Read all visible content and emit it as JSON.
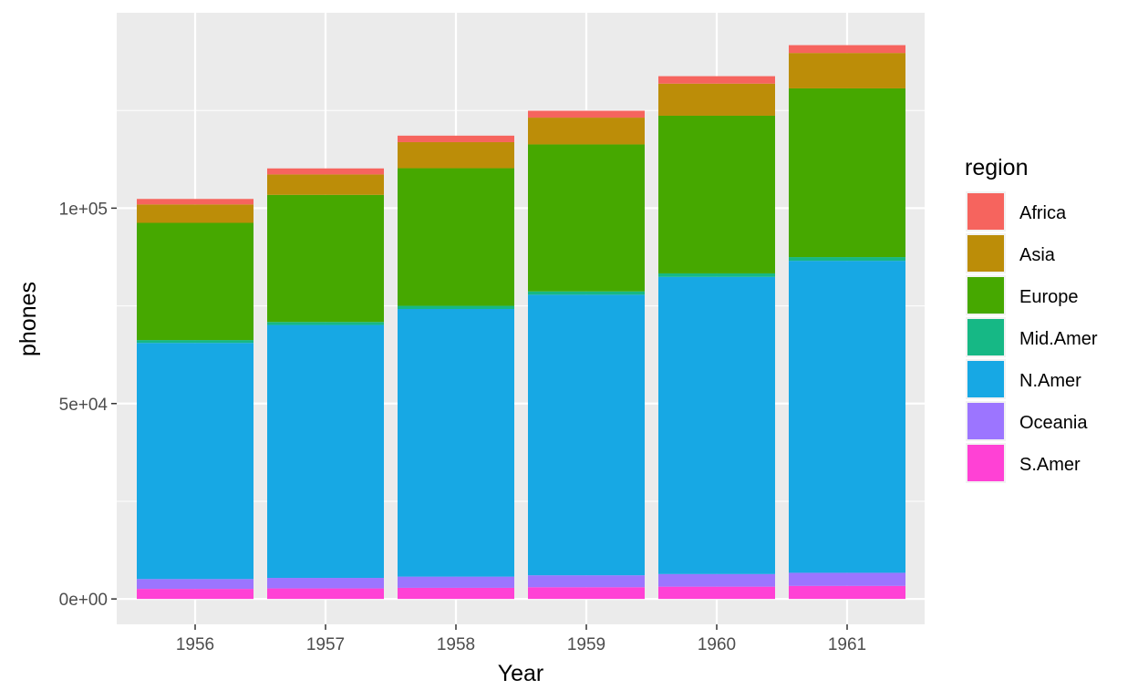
{
  "chart_data": {
    "type": "bar",
    "stacked": true,
    "title": "",
    "xlabel": "Year",
    "ylabel": "phones",
    "categories": [
      "1956",
      "1957",
      "1958",
      "1959",
      "1960",
      "1961"
    ],
    "ylim": [
      -6500,
      150000
    ],
    "yticks": [
      0,
      50000,
      100000
    ],
    "ytick_labels": [
      "0e+00",
      "5e+04",
      "1e+05"
    ],
    "grid": true,
    "legend_title": "region",
    "legend_position": "right",
    "series": [
      {
        "name": "S.Amer",
        "color": "#FF41D5",
        "values": [
          2568,
          2695,
          2845,
          3000,
          3145,
          3338
        ]
      },
      {
        "name": "Oceania",
        "color": "#9C75FF",
        "values": [
          2526,
          2691,
          2868,
          3054,
          3224,
          3360
        ]
      },
      {
        "name": "N.Amer",
        "color": "#17A8E4",
        "values": [
          60423,
          64721,
          68484,
          71799,
          76036,
          79831
        ]
      },
      {
        "name": "Mid.Amer",
        "color": "#16B885",
        "values": [
          733,
          778,
          811,
          856,
          901,
          951
        ]
      },
      {
        "name": "Europe",
        "color": "#46A800",
        "values": [
          29990,
          32510,
          35218,
          37598,
          40341,
          43173
        ]
      },
      {
        "name": "Asia",
        "color": "#BC8D08",
        "values": [
          4708,
          5230,
          6662,
          6856,
          8220,
          9053
        ]
      },
      {
        "name": "Africa",
        "color": "#F6645E",
        "values": [
          1411,
          1546,
          1663,
          1769,
          1905,
          2005
        ]
      }
    ],
    "legend_order": [
      "Africa",
      "Asia",
      "Europe",
      "Mid.Amer",
      "N.Amer",
      "Oceania",
      "S.Amer"
    ]
  }
}
